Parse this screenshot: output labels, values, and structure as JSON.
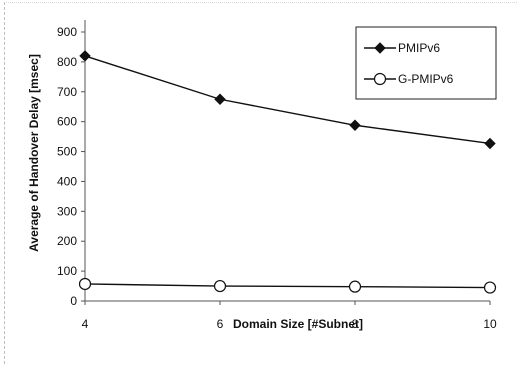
{
  "chart_data": {
    "type": "line",
    "title": "",
    "xlabel": "Domain Size [#Subnet]",
    "ylabel": "Average of Handover Delay [msec]",
    "x": [
      4,
      6,
      8,
      10
    ],
    "xlim": [
      4,
      10
    ],
    "ylim": [
      0,
      900
    ],
    "yticks": [
      0,
      100,
      200,
      300,
      400,
      500,
      600,
      700,
      800,
      900
    ],
    "xticks": [
      4,
      6,
      8,
      10
    ],
    "grid": false,
    "legend_position": "top-right",
    "series": [
      {
        "name": "PMIPv6",
        "values": [
          820,
          675,
          588,
          527
        ],
        "marker": "filled-diamond",
        "color": "#111111"
      },
      {
        "name": "G-PMIPv6",
        "values": [
          57,
          50,
          48,
          45
        ],
        "marker": "open-circle",
        "color": "#111111"
      }
    ]
  }
}
